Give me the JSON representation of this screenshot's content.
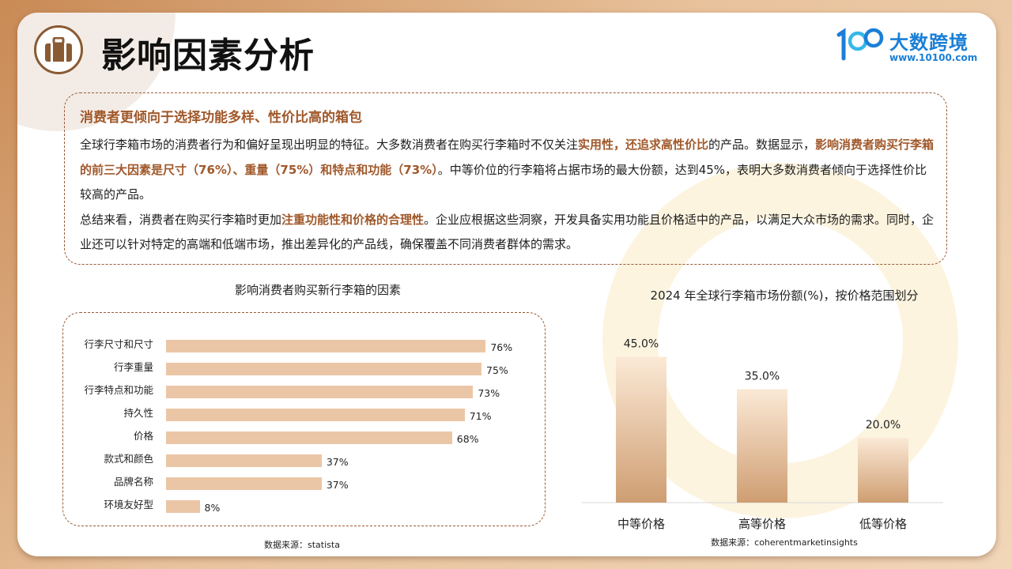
{
  "header": {
    "title": "影响因素分析",
    "logo_name": "大数跨境",
    "logo_url": "www.10100.com"
  },
  "info": {
    "heading": "消费者更倾向于选择功能多样、性价比高的箱包",
    "p1_a": "全球行李箱市场的消费者行为和偏好呈现出明显的特征。大多数消费者在购买行李箱时不仅关注",
    "p1_hl1": "实用性，还追求高性价比",
    "p1_b": "的产品。数据显示，",
    "p1_hl2": "影响消费者购买行李箱的前三大因素是尺寸（76%）、重量（75%）和特点和功能（73%）",
    "p1_c": "。中等价位的行李箱将占据市场的最大份额，达到45%，表明大多数消费者倾向于选择性价比较高的产品。",
    "p2_a": "总结来看，消费者在购买行李箱时更加",
    "p2_hl": "注重功能性和价格的合理性",
    "p2_b": "。企业应根据这些洞察，开发具备实用功能且价格适中的产品，以满足大众市场的需求。同时，企业还可以针对特定的高端和低端市场，推出差异化的产品线，确保覆盖不同消费者群体的需求。"
  },
  "colors": {
    "accent": "#a0582a",
    "bar_fill": "#ebc6a6",
    "col_top": "#fbe9d6",
    "col_bottom": "#cf9e72"
  },
  "chart_data": [
    {
      "type": "bar",
      "orientation": "horizontal",
      "title": "影响消费者购买新行李箱的因素",
      "categories": [
        "行李尺寸和尺寸",
        "行李重量",
        "行李特点和功能",
        "持久性",
        "价格",
        "款式和颜色",
        "品牌名称",
        "环境友好型"
      ],
      "values": [
        76,
        75,
        73,
        71,
        68,
        37,
        37,
        8
      ],
      "value_labels": [
        "76%",
        "75%",
        "73%",
        "71%",
        "68%",
        "37%",
        "37%",
        "8%"
      ],
      "xlim": [
        0,
        100
      ],
      "source": "数据来源：statista"
    },
    {
      "type": "bar",
      "title": "2024 年全球行李箱市场份额(%)，按价格范围划分",
      "categories": [
        "中等价格",
        "高等价格",
        "低等价格"
      ],
      "values": [
        45.0,
        35.0,
        20.0
      ],
      "value_labels": [
        "45.0%",
        "35.0%",
        "20.0%"
      ],
      "ylim": [
        0,
        50
      ],
      "source": "数据来源：coherentmarketinsights"
    }
  ]
}
